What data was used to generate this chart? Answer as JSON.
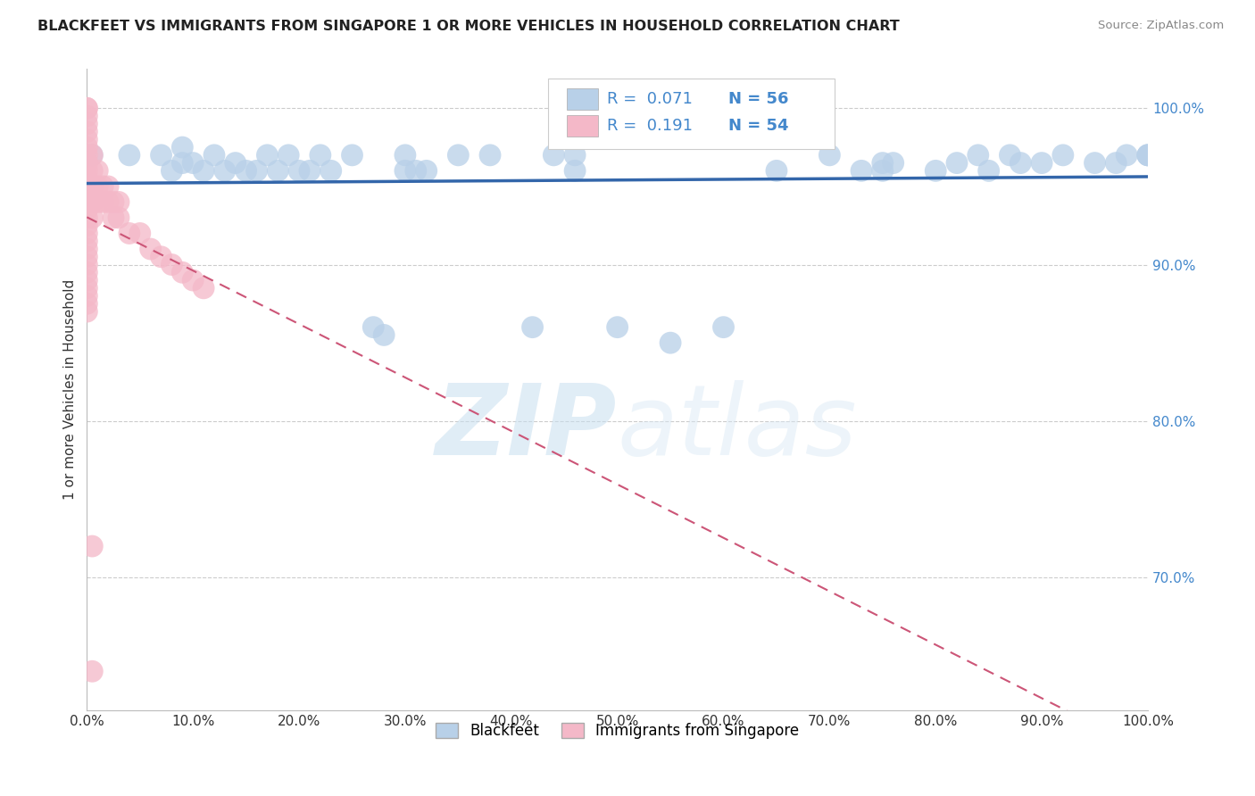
{
  "title": "BLACKFEET VS IMMIGRANTS FROM SINGAPORE 1 OR MORE VEHICLES IN HOUSEHOLD CORRELATION CHART",
  "source": "Source: ZipAtlas.com",
  "ylabel": "1 or more Vehicles in Household",
  "xlim": [
    0.0,
    1.0
  ],
  "ylim": [
    0.615,
    1.025
  ],
  "ytick_values": [
    0.7,
    0.8,
    0.9,
    1.0
  ],
  "ytick_labels": [
    "70.0%",
    "80.0%",
    "90.0%",
    "100.0%"
  ],
  "xtick_values": [
    0.0,
    0.1,
    0.2,
    0.3,
    0.4,
    0.5,
    0.6,
    0.7,
    0.8,
    0.9,
    1.0
  ],
  "xtick_labels": [
    "0.0%",
    "10.0%",
    "20.0%",
    "30.0%",
    "40.0%",
    "50.0%",
    "60.0%",
    "70.0%",
    "80.0%",
    "90.0%",
    "100.0%"
  ],
  "watermark_zip": "ZIP",
  "watermark_atlas": "atlas",
  "legend_r1": "0.071",
  "legend_n1": "56",
  "legend_r2": "0.191",
  "legend_n2": "54",
  "color_blue": "#b8d0e8",
  "color_pink": "#f4b8c8",
  "trendline_blue": "#3366aa",
  "trendline_pink": "#cc5577",
  "legend_label1": "Blackfeet",
  "legend_label2": "Immigrants from Singapore",
  "blue_x": [
    0.005,
    0.04,
    0.07,
    0.08,
    0.09,
    0.09,
    0.1,
    0.11,
    0.12,
    0.13,
    0.14,
    0.15,
    0.16,
    0.17,
    0.18,
    0.19,
    0.2,
    0.21,
    0.22,
    0.23,
    0.25,
    0.27,
    0.28,
    0.3,
    0.32,
    0.35,
    0.38,
    0.42,
    0.44,
    0.46,
    0.5,
    0.55,
    0.6,
    0.65,
    0.7,
    0.73,
    0.75,
    0.8,
    0.82,
    0.84,
    0.85,
    0.87,
    0.88,
    0.9,
    0.92,
    0.95,
    0.97,
    0.98,
    1.0,
    1.0,
    1.0,
    0.75,
    0.76,
    0.3,
    0.31,
    0.46
  ],
  "blue_y": [
    0.97,
    0.97,
    0.97,
    0.96,
    0.965,
    0.975,
    0.965,
    0.96,
    0.97,
    0.96,
    0.965,
    0.96,
    0.96,
    0.97,
    0.96,
    0.97,
    0.96,
    0.96,
    0.97,
    0.96,
    0.97,
    0.86,
    0.855,
    0.97,
    0.96,
    0.97,
    0.97,
    0.86,
    0.97,
    0.97,
    0.86,
    0.85,
    0.86,
    0.96,
    0.97,
    0.96,
    0.965,
    0.96,
    0.965,
    0.97,
    0.96,
    0.97,
    0.965,
    0.965,
    0.97,
    0.965,
    0.965,
    0.97,
    0.97,
    0.97,
    0.97,
    0.96,
    0.965,
    0.96,
    0.96,
    0.96
  ],
  "pink_x": [
    0.0,
    0.0,
    0.0,
    0.0,
    0.0,
    0.0,
    0.0,
    0.0,
    0.0,
    0.0,
    0.0,
    0.0,
    0.0,
    0.0,
    0.0,
    0.0,
    0.0,
    0.0,
    0.0,
    0.0,
    0.0,
    0.0,
    0.0,
    0.0,
    0.0,
    0.0,
    0.0,
    0.0,
    0.005,
    0.005,
    0.005,
    0.005,
    0.005,
    0.01,
    0.01,
    0.01,
    0.015,
    0.015,
    0.02,
    0.02,
    0.025,
    0.025,
    0.03,
    0.03,
    0.04,
    0.05,
    0.06,
    0.07,
    0.08,
    0.09,
    0.1,
    0.11,
    0.005,
    0.005
  ],
  "pink_y": [
    1.0,
    1.0,
    0.995,
    0.99,
    0.985,
    0.98,
    0.975,
    0.97,
    0.965,
    0.96,
    0.955,
    0.95,
    0.945,
    0.94,
    0.935,
    0.93,
    0.925,
    0.92,
    0.915,
    0.91,
    0.905,
    0.9,
    0.895,
    0.89,
    0.885,
    0.88,
    0.875,
    0.87,
    0.97,
    0.96,
    0.95,
    0.94,
    0.93,
    0.96,
    0.95,
    0.94,
    0.95,
    0.94,
    0.95,
    0.94,
    0.94,
    0.93,
    0.94,
    0.93,
    0.92,
    0.92,
    0.91,
    0.905,
    0.9,
    0.895,
    0.89,
    0.885,
    0.72,
    0.64
  ]
}
